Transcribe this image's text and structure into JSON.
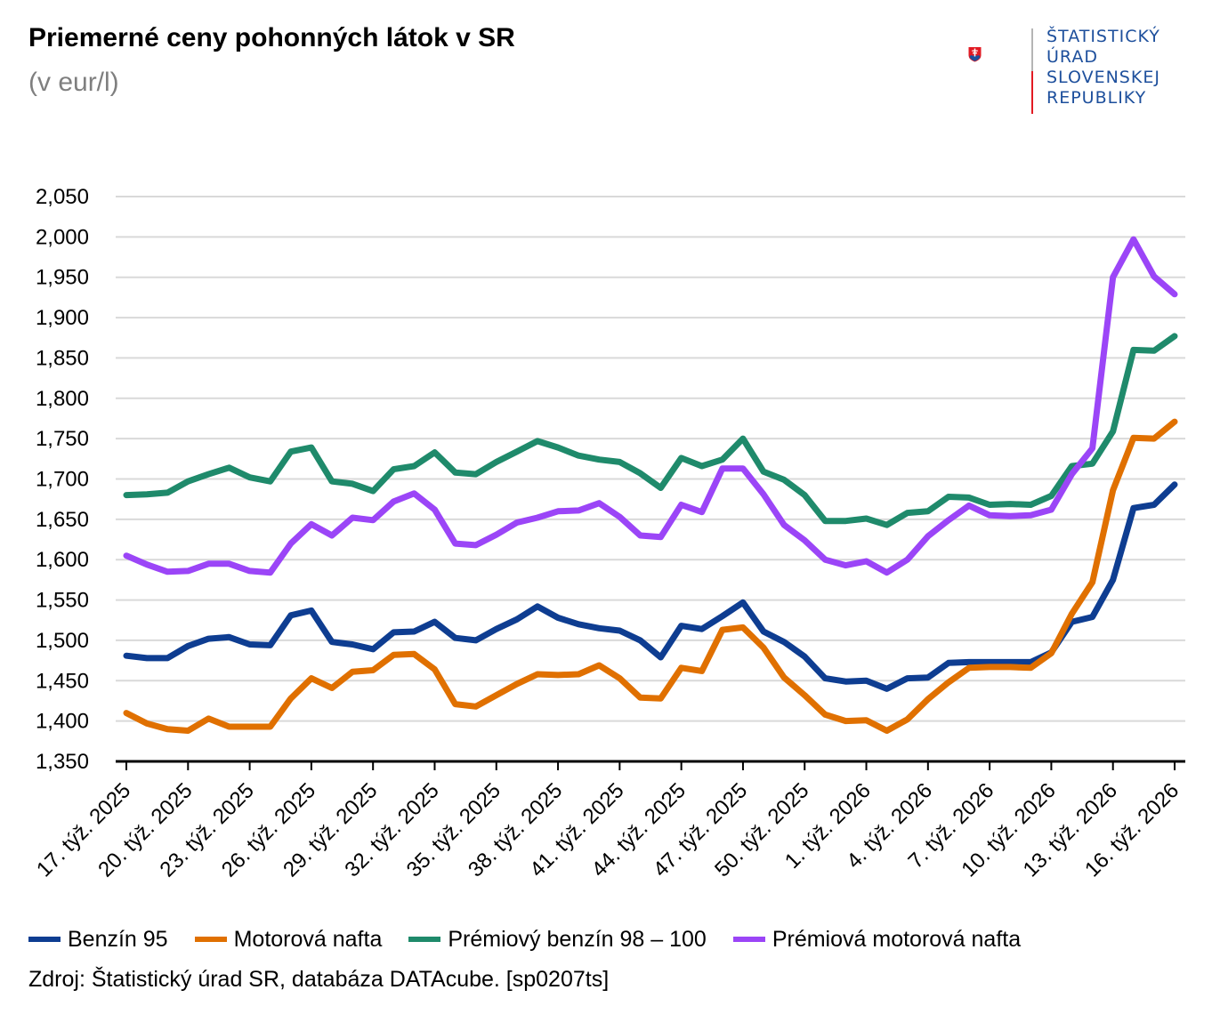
{
  "header": {
    "title": "Priemerné ceny pohonných látok v SR",
    "subtitle": "(v eur/l)"
  },
  "logo": {
    "lines": [
      "ŠTATISTICKÝ",
      "ÚRAD",
      "SLOVENSKEJ",
      "REPUBLIKY"
    ]
  },
  "source": "Zdroj: Štatistický úrad SR, databáza DATAcube. [sp0207ts]",
  "chart_data": {
    "type": "line",
    "title": "Priemerné ceny pohonných látok v SR",
    "subtitle": "(v eur/l)",
    "ylim": [
      1.35,
      2.05
    ],
    "y_ticks": [
      "1,350",
      "1,400",
      "1,450",
      "1,500",
      "1,550",
      "1,600",
      "1,650",
      "1,700",
      "1,750",
      "1,800",
      "1,850",
      "1,900",
      "1,950",
      "2,000",
      "2,050"
    ],
    "grid": true,
    "legend_position": "bottom",
    "x": [
      "17. týž. 2025",
      "18. týž. 2025",
      "19. týž. 2025",
      "20. týž. 2025",
      "21. týž. 2025",
      "22. týž. 2025",
      "23. týž. 2025",
      "24. týž. 2025",
      "25. týž. 2025",
      "26. týž. 2025",
      "27. týž. 2025",
      "28. týž. 2025",
      "29. týž. 2025",
      "30. týž. 2025",
      "31. týž. 2025",
      "32. týž. 2025",
      "33. týž. 2025",
      "34. týž. 2025",
      "35. týž. 2025",
      "36. týž. 2025",
      "37. týž. 2025",
      "38. týž. 2025",
      "39. týž. 2025",
      "40. týž. 2025",
      "41. týž. 2025",
      "42. týž. 2025",
      "43. týž. 2025",
      "44. týž. 2025",
      "45. týž. 2025",
      "46. týž. 2025",
      "47. týž. 2025",
      "48. týž. 2025",
      "49. týž. 2025",
      "50. týž. 2025",
      "51. týž. 2025",
      "52. týž. 2025",
      "1. týž. 2026",
      "2. týž. 2026",
      "3. týž. 2026",
      "4. týž. 2026",
      "5. týž. 2026",
      "6. týž. 2026",
      "7. týž. 2026",
      "8. týž. 2026",
      "9. týž. 2026",
      "10. týž. 2026",
      "11. týž. 2026",
      "12. týž. 2026",
      "13. týž. 2026",
      "14. týž. 2026",
      "15. týž. 2026",
      "16. týž. 2026"
    ],
    "x_tick_labels": [
      "17. týž. 2025",
      "20. týž. 2025",
      "23. týž. 2025",
      "26. týž. 2025",
      "29. týž. 2025",
      "32. týž. 2025",
      "35. týž. 2025",
      "38. týž. 2025",
      "41. týž. 2025",
      "44. týž. 2025",
      "47. týž. 2025",
      "50. týž. 2025",
      "1. týž. 2026",
      "4. týž. 2026",
      "7. týž. 2026",
      "10. týž. 2026",
      "13. týž. 2026",
      "16. týž. 2026"
    ],
    "series": [
      {
        "name": "Benzín 95",
        "color": "#0e3d91",
        "values": [
          1.481,
          1.478,
          1.478,
          1.493,
          1.502,
          1.504,
          1.495,
          1.494,
          1.531,
          1.537,
          1.498,
          1.495,
          1.489,
          1.51,
          1.511,
          1.523,
          1.503,
          1.5,
          1.514,
          1.526,
          1.542,
          1.528,
          1.52,
          1.515,
          1.512,
          1.5,
          1.479,
          1.518,
          1.514,
          1.53,
          1.547,
          1.511,
          1.498,
          1.48,
          1.453,
          1.449,
          1.45,
          1.44,
          1.453,
          1.454,
          1.472,
          1.473,
          1.473,
          1.473,
          1.473,
          1.485,
          1.523,
          1.529,
          1.575,
          1.664,
          1.668,
          1.693
        ]
      },
      {
        "name": "Motorová nafta",
        "color": "#e07000",
        "values": [
          1.41,
          1.397,
          1.39,
          1.388,
          1.403,
          1.393,
          1.393,
          1.393,
          1.428,
          1.453,
          1.441,
          1.461,
          1.463,
          1.482,
          1.483,
          1.464,
          1.421,
          1.418,
          1.432,
          1.446,
          1.458,
          1.457,
          1.458,
          1.469,
          1.453,
          1.429,
          1.428,
          1.466,
          1.462,
          1.513,
          1.516,
          1.491,
          1.454,
          1.432,
          1.408,
          1.4,
          1.401,
          1.388,
          1.402,
          1.427,
          1.448,
          1.466,
          1.467,
          1.467,
          1.466,
          1.484,
          1.533,
          1.572,
          1.686,
          1.751,
          1.75,
          1.771
        ]
      },
      {
        "name": "Prémiový benzín 98 – 100",
        "color": "#1f8a6b",
        "values": [
          1.68,
          1.681,
          1.683,
          1.697,
          1.706,
          1.714,
          1.702,
          1.697,
          1.734,
          1.739,
          1.697,
          1.694,
          1.685,
          1.712,
          1.716,
          1.733,
          1.708,
          1.706,
          1.721,
          1.734,
          1.747,
          1.739,
          1.729,
          1.724,
          1.721,
          1.707,
          1.689,
          1.726,
          1.716,
          1.724,
          1.75,
          1.709,
          1.699,
          1.68,
          1.648,
          1.648,
          1.651,
          1.643,
          1.658,
          1.66,
          1.678,
          1.677,
          1.668,
          1.669,
          1.668,
          1.679,
          1.716,
          1.719,
          1.759,
          1.86,
          1.859,
          1.877
        ]
      },
      {
        "name": "Prémiová motorová nafta",
        "color": "#9b45f7",
        "values": [
          1.605,
          1.594,
          1.585,
          1.586,
          1.595,
          1.595,
          1.586,
          1.584,
          1.62,
          1.644,
          1.63,
          1.652,
          1.649,
          1.672,
          1.682,
          1.662,
          1.62,
          1.618,
          1.631,
          1.646,
          1.652,
          1.66,
          1.661,
          1.67,
          1.653,
          1.63,
          1.628,
          1.668,
          1.659,
          1.713,
          1.713,
          1.681,
          1.643,
          1.624,
          1.6,
          1.593,
          1.598,
          1.584,
          1.6,
          1.629,
          1.649,
          1.667,
          1.655,
          1.654,
          1.655,
          1.662,
          1.706,
          1.738,
          1.95,
          1.997,
          1.951,
          1.929
        ]
      }
    ]
  }
}
